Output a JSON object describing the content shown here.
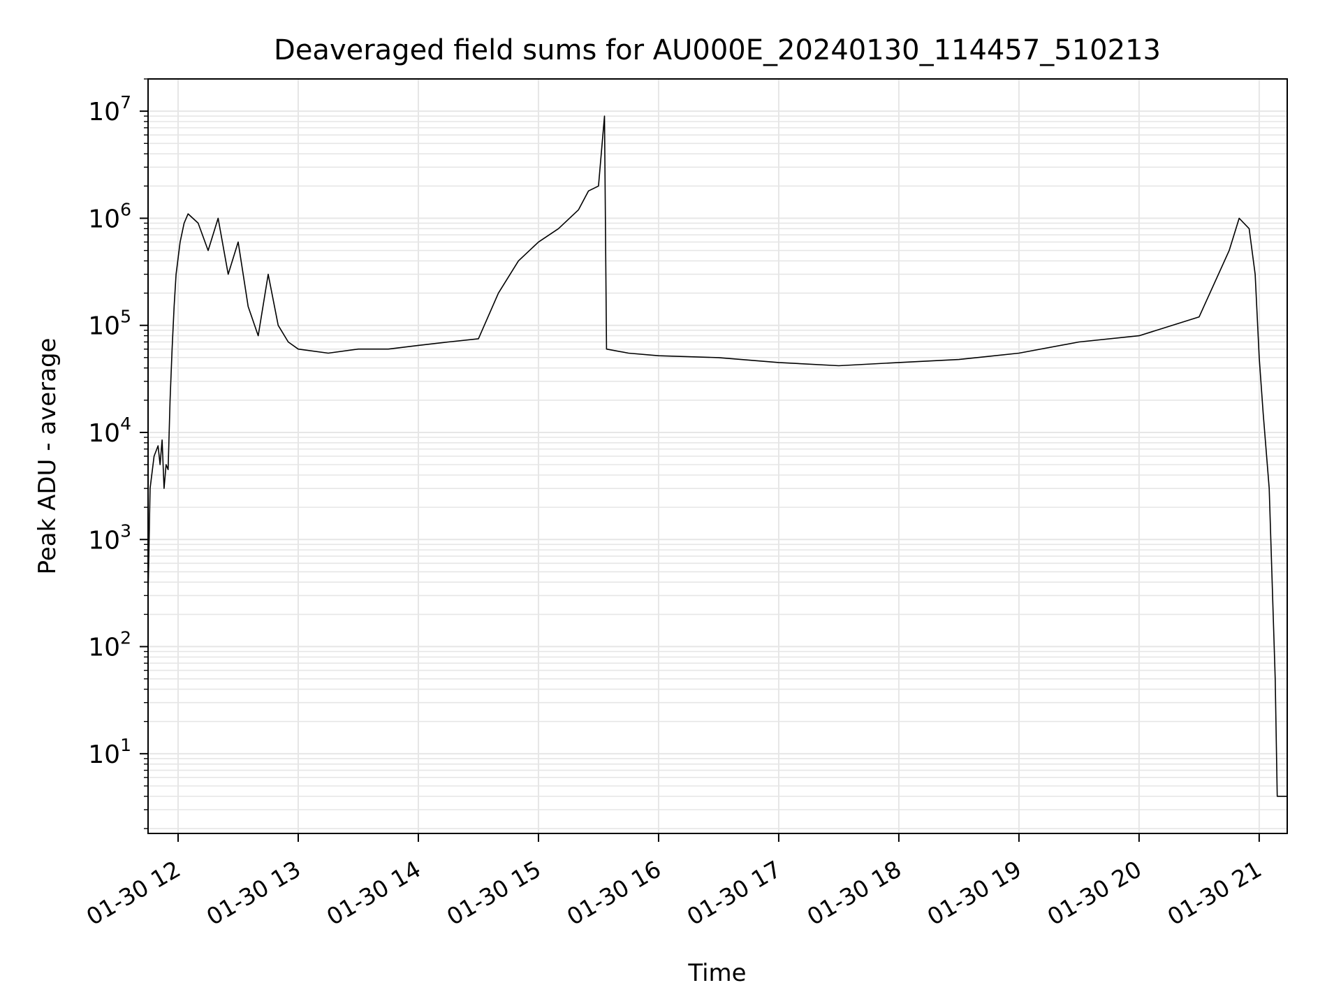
{
  "chart_data": {
    "type": "line",
    "title": "Deaveraged field sums for AU000E_20240130_114457_510213",
    "xlabel": "Time",
    "ylabel": "Peak ADU - average",
    "yscale": "log",
    "grid": true,
    "line_color": "#000000",
    "grid_color": "#e6e6e6",
    "xlim": [
      "2024-01-30 11:45",
      "2024-01-30 21:14"
    ],
    "ylim": [
      1.8,
      20000000
    ],
    "x_ticks": [
      {
        "value": "2024-01-30 12:00",
        "label": "01-30 12"
      },
      {
        "value": "2024-01-30 13:00",
        "label": "01-30 13"
      },
      {
        "value": "2024-01-30 14:00",
        "label": "01-30 14"
      },
      {
        "value": "2024-01-30 15:00",
        "label": "01-30 15"
      },
      {
        "value": "2024-01-30 16:00",
        "label": "01-30 16"
      },
      {
        "value": "2024-01-30 17:00",
        "label": "01-30 17"
      },
      {
        "value": "2024-01-30 18:00",
        "label": "01-30 18"
      },
      {
        "value": "2024-01-30 19:00",
        "label": "01-30 19"
      },
      {
        "value": "2024-01-30 20:00",
        "label": "01-30 20"
      },
      {
        "value": "2024-01-30 21:00",
        "label": "01-30 21"
      }
    ],
    "y_ticks": [
      {
        "value": 10,
        "base": "10",
        "exp": "1"
      },
      {
        "value": 100,
        "base": "10",
        "exp": "2"
      },
      {
        "value": 1000,
        "base": "10",
        "exp": "3"
      },
      {
        "value": 10000,
        "base": "10",
        "exp": "4"
      },
      {
        "value": 100000,
        "base": "10",
        "exp": "5"
      },
      {
        "value": 1000000,
        "base": "10",
        "exp": "6"
      },
      {
        "value": 10000000,
        "base": "10",
        "exp": "7"
      }
    ],
    "series": [
      {
        "points": [
          [
            "2024-01-30 11:45",
            300
          ],
          [
            "2024-01-30 11:46",
            3000
          ],
          [
            "2024-01-30 11:48",
            6000
          ],
          [
            "2024-01-30 11:50",
            7500
          ],
          [
            "2024-01-30 11:51",
            5000
          ],
          [
            "2024-01-30 11:52",
            8500
          ],
          [
            "2024-01-30 11:53",
            3000
          ],
          [
            "2024-01-30 11:54",
            5000
          ],
          [
            "2024-01-30 11:55",
            4500
          ],
          [
            "2024-01-30 11:56",
            20000
          ],
          [
            "2024-01-30 11:57",
            60000
          ],
          [
            "2024-01-30 11:58",
            150000
          ],
          [
            "2024-01-30 11:59",
            300000
          ],
          [
            "2024-01-30 12:01",
            600000
          ],
          [
            "2024-01-30 12:03",
            900000
          ],
          [
            "2024-01-30 12:05",
            1100000
          ],
          [
            "2024-01-30 12:10",
            900000
          ],
          [
            "2024-01-30 12:15",
            500000
          ],
          [
            "2024-01-30 12:20",
            1000000
          ],
          [
            "2024-01-30 12:25",
            300000
          ],
          [
            "2024-01-30 12:30",
            600000
          ],
          [
            "2024-01-30 12:35",
            150000
          ],
          [
            "2024-01-30 12:40",
            80000
          ],
          [
            "2024-01-30 12:45",
            300000
          ],
          [
            "2024-01-30 12:50",
            100000
          ],
          [
            "2024-01-30 12:55",
            70000
          ],
          [
            "2024-01-30 13:00",
            60000
          ],
          [
            "2024-01-30 13:15",
            55000
          ],
          [
            "2024-01-30 13:30",
            60000
          ],
          [
            "2024-01-30 13:45",
            60000
          ],
          [
            "2024-01-30 14:00",
            65000
          ],
          [
            "2024-01-30 14:15",
            70000
          ],
          [
            "2024-01-30 14:30",
            75000
          ],
          [
            "2024-01-30 14:40",
            200000
          ],
          [
            "2024-01-30 14:50",
            400000
          ],
          [
            "2024-01-30 15:00",
            600000
          ],
          [
            "2024-01-30 15:10",
            800000
          ],
          [
            "2024-01-30 15:20",
            1200000
          ],
          [
            "2024-01-30 15:25",
            1800000
          ],
          [
            "2024-01-30 15:30",
            2000000
          ],
          [
            "2024-01-30 15:33",
            9000000
          ],
          [
            "2024-01-30 15:34",
            60000
          ],
          [
            "2024-01-30 15:45",
            55000
          ],
          [
            "2024-01-30 16:00",
            52000
          ],
          [
            "2024-01-30 16:30",
            50000
          ],
          [
            "2024-01-30 17:00",
            45000
          ],
          [
            "2024-01-30 17:30",
            42000
          ],
          [
            "2024-01-30 18:00",
            45000
          ],
          [
            "2024-01-30 18:30",
            48000
          ],
          [
            "2024-01-30 19:00",
            55000
          ],
          [
            "2024-01-30 19:30",
            70000
          ],
          [
            "2024-01-30 20:00",
            80000
          ],
          [
            "2024-01-30 20:30",
            120000
          ],
          [
            "2024-01-30 20:45",
            500000
          ],
          [
            "2024-01-30 20:50",
            1000000
          ],
          [
            "2024-01-30 20:55",
            800000
          ],
          [
            "2024-01-30 20:58",
            300000
          ],
          [
            "2024-01-30 21:00",
            50000
          ],
          [
            "2024-01-30 21:02",
            15000
          ],
          [
            "2024-01-30 21:05",
            3000
          ],
          [
            "2024-01-30 21:08",
            50
          ],
          [
            "2024-01-30 21:09",
            4
          ],
          [
            "2024-01-30 21:14",
            4
          ]
        ]
      }
    ]
  }
}
